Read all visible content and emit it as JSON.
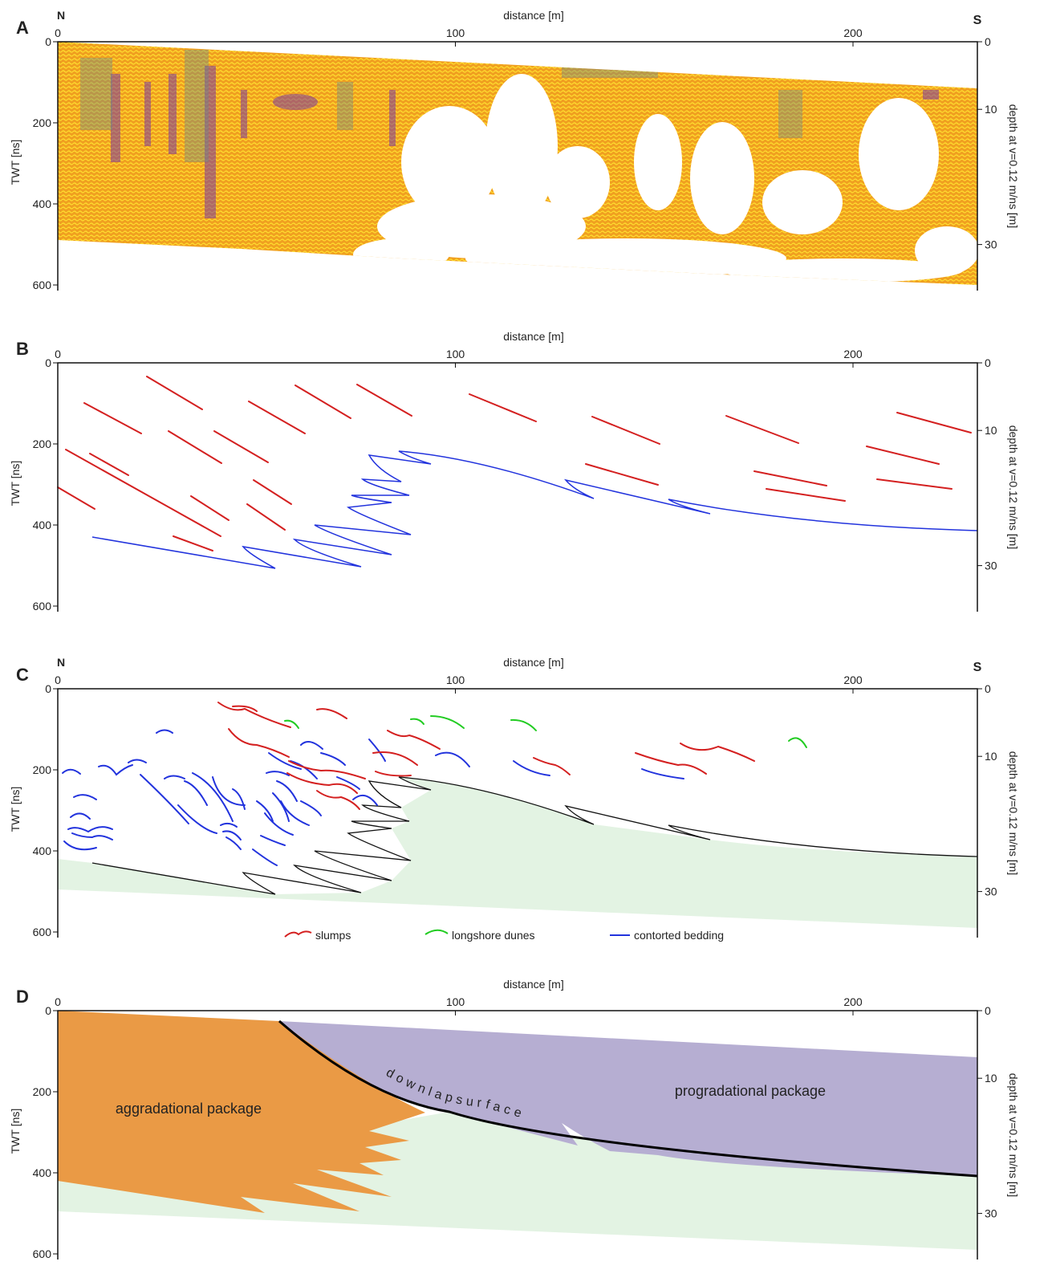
{
  "panels": [
    {
      "label": "A",
      "x_axis_title": "distance [m]",
      "x_ticks": [
        0,
        100,
        200
      ],
      "y_axis_title": "TWT [ns]",
      "y_ticks": [
        0,
        200,
        400,
        600
      ],
      "y2_axis_title": "depth at v=0.12 m/ns [m]",
      "y2_ticks": [
        0,
        10,
        30
      ],
      "north": "N",
      "south": "S"
    },
    {
      "label": "B",
      "x_axis_title": "distance [m]",
      "x_ticks": [
        0,
        100,
        200
      ],
      "y_axis_title": "TWT [ns]",
      "y_ticks": [
        0,
        200,
        400,
        600
      ],
      "y2_axis_title": "depth at v=0.12 m/ns [m]",
      "y2_ticks": [
        0,
        10,
        30
      ]
    },
    {
      "label": "C",
      "x_axis_title": "distance [m]",
      "x_ticks": [
        0,
        100,
        200
      ],
      "y_axis_title": "TWT [ns]",
      "y_ticks": [
        0,
        200,
        400,
        600
      ],
      "y2_axis_title": "depth at v=0.12 m/ns [m]",
      "y2_ticks": [
        0,
        10,
        30
      ],
      "north": "N",
      "south": "S",
      "legend": [
        "slumps",
        "longshore dunes",
        "contorted bedding"
      ]
    },
    {
      "label": "D",
      "x_axis_title": "distance [m]",
      "x_ticks": [
        0,
        100,
        200
      ],
      "y_axis_title": "TWT [ns]",
      "y_ticks": [
        0,
        200,
        400,
        600
      ],
      "y2_axis_title": "depth at v=0.12 m/ns [m]",
      "y2_ticks": [
        0,
        10,
        30
      ],
      "annotations": [
        "aggradational package",
        "progradational package",
        "downlapsurface"
      ]
    }
  ]
}
